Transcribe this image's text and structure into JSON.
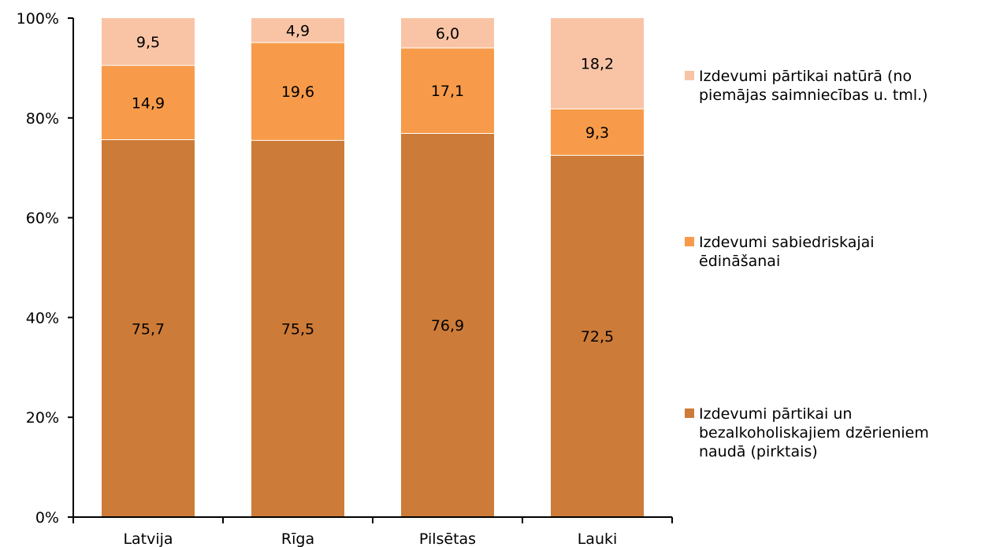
{
  "chart_data": {
    "type": "bar",
    "stacked": true,
    "percent_stacked": true,
    "categories": [
      "Latvija",
      "Rīga",
      "Pilsētas",
      "Lauki"
    ],
    "series": [
      {
        "name": "Izdevumi pārtikai un bezalkoholiskajiem dzērieniem naudā (pirktais)",
        "legend_lines": [
          "Izdevumi pārtikai un",
          "bezalkoholiskajiem dzērieniem",
          "naudā (pirktais)"
        ],
        "values": [
          75.7,
          75.5,
          76.9,
          72.5
        ],
        "labels": [
          "75,7",
          "75,5",
          "76,9",
          "72,5"
        ],
        "color": "#CD7B38"
      },
      {
        "name": "Izdevumi sabiedriskajai ēdināšanai",
        "legend_lines": [
          "Izdevumi sabiedriskajai",
          "ēdināšanai"
        ],
        "values": [
          14.9,
          19.6,
          17.1,
          9.3
        ],
        "labels": [
          "14,9",
          "19,6",
          "17,1",
          "9,3"
        ],
        "color": "#F79B4A"
      },
      {
        "name": "Izdevumi pārtikai natūrā (no piemājas saimniecības u. tml.)",
        "legend_lines": [
          "Izdevumi pārtikai natūrā (no",
          "piemājas saimniecības u. tml.)"
        ],
        "values": [
          9.5,
          4.9,
          6.0,
          18.2
        ],
        "labels": [
          "9,5",
          "4,9",
          "6,0",
          "18,2"
        ],
        "color": "#F9C4A6"
      }
    ],
    "y_ticks": [
      0,
      20,
      40,
      60,
      80,
      100
    ],
    "y_tick_labels": [
      "0%",
      "20%",
      "40%",
      "60%",
      "80%",
      "100%"
    ],
    "ylim": [
      0,
      100
    ],
    "grid": false,
    "legend_position": "right",
    "title": "",
    "xlabel": "",
    "ylabel": ""
  }
}
